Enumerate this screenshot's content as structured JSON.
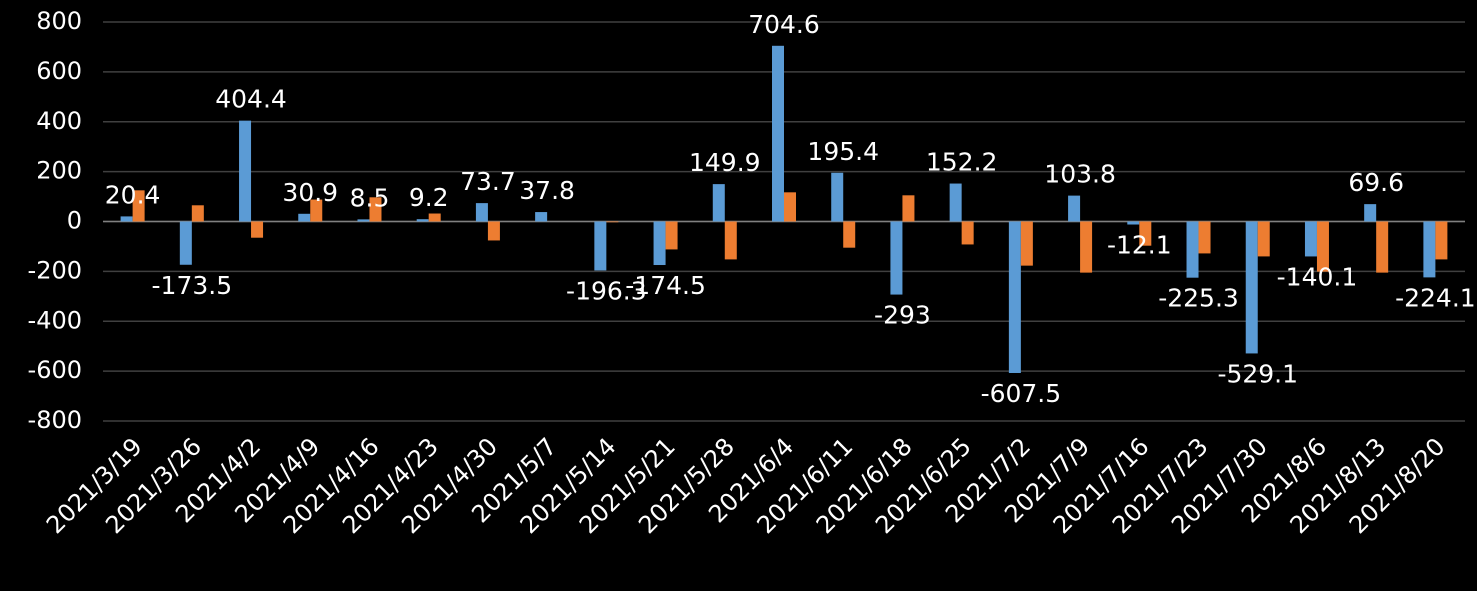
{
  "chart_data": {
    "type": "bar",
    "categories": [
      "2021/3/19",
      "2021/3/26",
      "2021/4/2",
      "2021/4/9",
      "2021/4/16",
      "2021/4/23",
      "2021/4/30",
      "2021/5/7",
      "2021/5/14",
      "2021/5/21",
      "2021/5/28",
      "2021/6/4",
      "2021/6/11",
      "2021/6/18",
      "2021/6/25",
      "2021/7/2",
      "2021/7/9",
      "2021/7/16",
      "2021/7/23",
      "2021/7/30",
      "2021/8/6",
      "2021/8/13",
      "2021/8/20"
    ],
    "series": [
      {
        "color": "#5b9bd5",
        "data_labels": true,
        "values": [
          20.4,
          -173.5,
          404.4,
          30.9,
          8.5,
          9.2,
          73.7,
          37.8,
          -196.3,
          -174.5,
          149.9,
          704.6,
          195.4,
          -293,
          152.2,
          -607.5,
          103.8,
          -12.1,
          -225.3,
          -529.1,
          -140.1,
          69.6,
          -224.1
        ]
      },
      {
        "color": "#ed7d31",
        "data_labels": false,
        "values": [
          125,
          65,
          -65,
          88,
          97,
          32,
          -76,
          0,
          -3,
          -112,
          -152,
          117,
          -105,
          105,
          -92,
          -177,
          -205,
          -97,
          -128,
          -140,
          -201,
          -205,
          -152
        ]
      }
    ],
    "ylim": [
      -800,
      800
    ],
    "yticks": [
      -800,
      -600,
      -400,
      -200,
      0,
      200,
      400,
      600,
      800
    ],
    "grid": true
  }
}
